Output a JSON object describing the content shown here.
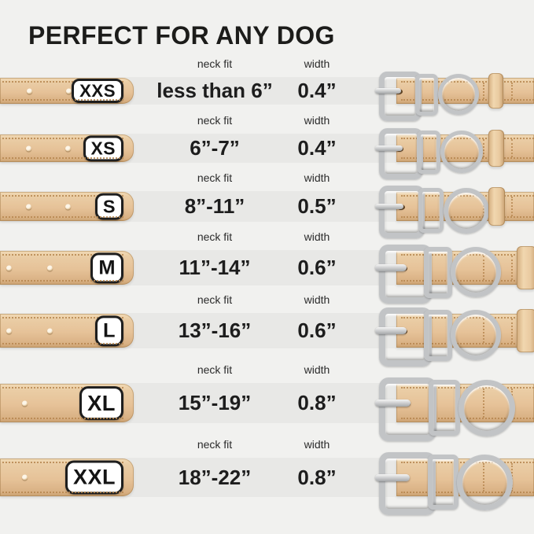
{
  "title": "PERFECT FOR ANY DOG",
  "columns": {
    "neck_fit": "neck fit",
    "width": "width"
  },
  "colors": {
    "background": "#f1f1ef",
    "band": "#e8e8e6",
    "strap_tan": "#e6c298",
    "metal_silver": "#c2c4c6",
    "text": "#1d1d1d"
  },
  "rows": [
    {
      "size": "XXS",
      "neck_fit": "less than 6”",
      "width": "0.4”"
    },
    {
      "size": "XS",
      "neck_fit": "6”-7”",
      "width": "0.4”"
    },
    {
      "size": "S",
      "neck_fit": "8”-11”",
      "width": "0.5”"
    },
    {
      "size": "M",
      "neck_fit": "11”-14”",
      "width": "0.6”"
    },
    {
      "size": "L",
      "neck_fit": "13”-16”",
      "width": "0.6”"
    },
    {
      "size": "XL",
      "neck_fit": "15”-19”",
      "width": "0.8”"
    },
    {
      "size": "XXL",
      "neck_fit": "18”-22”",
      "width": "0.8”"
    }
  ]
}
